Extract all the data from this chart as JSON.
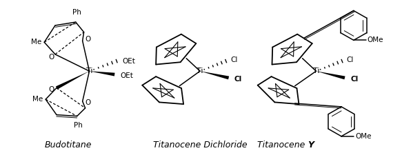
{
  "background_color": "#ffffff",
  "labels": {
    "budotitane": "Budotitane",
    "titanocene_dichloride": "Titanocene Dichloride",
    "titanocene_y": "Titanocene Y"
  },
  "label_fontsize": 9,
  "figsize": [
    5.83,
    2.25
  ],
  "dpi": 100
}
